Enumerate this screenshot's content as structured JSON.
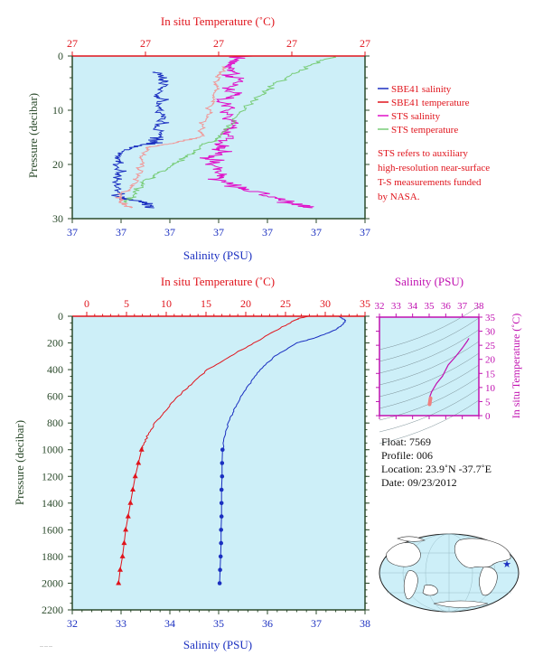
{
  "colors": {
    "plot_bg": "#cdeff8",
    "salinity_blue": "#1a2fc0",
    "temperature_red": "#e0141c",
    "sts_salinity": "#e010c8",
    "sts_temperature": "#78cc78",
    "pale_temperature": "#f09a9a",
    "axis_green": "#2b4a2b",
    "magenta": "#c010b0",
    "text_black": "#111111"
  },
  "top_panel": {
    "title_temp": "In situ Temperature (˚C)",
    "xlabel_sal": "Salinity (PSU)",
    "ylabel": "Pressure (decibar)",
    "temp_tick_labels": [
      "27",
      "27",
      "27",
      "27",
      "27"
    ],
    "sal_tick_labels": [
      "37",
      "37",
      "37",
      "37",
      "37",
      "37",
      "37"
    ],
    "pressure_tick_labels": [
      "0",
      "10",
      "20",
      "30"
    ],
    "legend": [
      {
        "label": "SBE41 salinity",
        "color": "#1a2fc0"
      },
      {
        "label": "SBE41 temperature",
        "color": "#e0141c"
      },
      {
        "label": "STS salinity",
        "color": "#e010c8"
      },
      {
        "label": "STS temperature",
        "color": "#78cc78"
      }
    ],
    "note_lines": [
      "STS refers to auxiliary",
      "high-resolution near-surface",
      "T-S measurements funded",
      "by NASA."
    ]
  },
  "main_panel": {
    "title_temp": "In situ Temperature (˚C)",
    "xlabel_sal": "Salinity (PSU)",
    "ylabel": "Pressure (decibar)",
    "temp_tick_labels": [
      "0",
      "5",
      "10",
      "15",
      "20",
      "25",
      "30",
      "35"
    ],
    "sal_tick_labels": [
      "32",
      "33",
      "34",
      "35",
      "36",
      "37",
      "38"
    ],
    "pressure_tick_labels": [
      "0",
      "200",
      "400",
      "600",
      "800",
      "1000",
      "1200",
      "1400",
      "1600",
      "1800",
      "2000",
      "2200"
    ]
  },
  "ts_panel": {
    "title_sal": "Salinity (PSU)",
    "ylabel": "In situ Temperature (˚C)",
    "sal_tick_labels": [
      "32",
      "33",
      "34",
      "35",
      "36",
      "37",
      "38"
    ],
    "temp_tick_labels": [
      "0",
      "5",
      "10",
      "15",
      "20",
      "25",
      "30",
      "35"
    ]
  },
  "float_info": {
    "float": "Float: 7569",
    "profile": "Profile: 006",
    "location": "Location: 23.9˚N -37.7˚E",
    "date": "Date: 09/23/2012"
  },
  "map": {
    "marker_icon": "star-icon"
  },
  "chart_data": [
    {
      "type": "line",
      "title": "In situ Temperature (˚C)",
      "xlabel": "Salinity (PSU)",
      "ylabel": "Pressure (decibar)",
      "ylim": [
        30,
        0
      ],
      "series": [
        {
          "name": "SBE41 salinity",
          "axis": "salinity",
          "pressure": [
            3,
            5,
            8,
            12,
            15,
            16,
            17,
            20,
            23,
            26,
            27,
            28
          ],
          "values": [
            0.29,
            0.31,
            0.3,
            0.3,
            0.29,
            0.28,
            0.18,
            0.17,
            0.15,
            0.15,
            0.25,
            0.28
          ]
        },
        {
          "name": "SBE41 temperature",
          "axis": "temperature",
          "pressure": [
            2,
            4,
            8,
            12,
            15,
            16,
            17,
            20,
            23,
            26,
            27,
            28
          ],
          "values": [
            0.52,
            0.5,
            0.48,
            0.45,
            0.44,
            0.35,
            0.25,
            0.24,
            0.22,
            0.16,
            0.17,
            0.2
          ]
        },
        {
          "name": "STS salinity",
          "axis": "salinity",
          "pressure": [
            0,
            2,
            5,
            8,
            12,
            16,
            18,
            20,
            23,
            25,
            27,
            28
          ],
          "values": [
            0.57,
            0.55,
            0.56,
            0.52,
            0.54,
            0.53,
            0.5,
            0.48,
            0.5,
            0.62,
            0.75,
            0.82
          ]
        },
        {
          "name": "STS temperature",
          "axis": "temperature",
          "pressure": [
            0,
            2,
            5,
            8,
            12,
            15,
            18,
            20,
            23,
            26,
            27
          ],
          "values": [
            0.9,
            0.8,
            0.7,
            0.62,
            0.55,
            0.5,
            0.4,
            0.35,
            0.25,
            0.2,
            0.18
          ]
        }
      ]
    },
    {
      "type": "line",
      "title": "In situ Temperature (˚C)",
      "xlabel": "Salinity (PSU)",
      "ylabel": "Pressure (decibar)",
      "xlim_temperature": [
        0,
        35
      ],
      "xlim_salinity": [
        32,
        38
      ],
      "ylim": [
        2200,
        0
      ],
      "series": [
        {
          "name": "Temperature",
          "axis": "temperature",
          "color": "#e0141c",
          "pressure": [
            0,
            20,
            100,
            200,
            300,
            400,
            500,
            600,
            700,
            800,
            900,
            1000
          ],
          "values": [
            27.8,
            26.5,
            24.0,
            21.0,
            18.0,
            15.2,
            13.3,
            11.5,
            10.0,
            8.6,
            7.6,
            6.9
          ]
        },
        {
          "name": "Salinity",
          "axis": "salinity",
          "color": "#1a2fc0",
          "pressure": [
            0,
            30,
            60,
            100,
            160,
            200,
            300,
            400,
            500,
            600,
            700,
            800,
            900,
            1000
          ],
          "values": [
            37.45,
            37.6,
            37.55,
            37.4,
            37.0,
            36.6,
            36.15,
            35.85,
            35.65,
            35.45,
            35.32,
            35.2,
            35.13,
            35.08
          ]
        },
        {
          "name": "Temperature (bottle)",
          "axis": "temperature",
          "color": "#e0141c",
          "marker": "triangle",
          "pressure": [
            1000,
            1100,
            1200,
            1300,
            1400,
            1500,
            1600,
            1700,
            1800,
            1900,
            2000
          ],
          "values": [
            6.9,
            6.5,
            6.1,
            5.8,
            5.5,
            5.2,
            4.9,
            4.7,
            4.5,
            4.2,
            4.0
          ]
        },
        {
          "name": "Salinity (bottle)",
          "axis": "salinity",
          "color": "#1a2fc0",
          "marker": "circle",
          "pressure": [
            1000,
            1100,
            1200,
            1300,
            1400,
            1500,
            1600,
            1700,
            1800,
            1900,
            2000
          ],
          "values": [
            35.08,
            35.07,
            35.07,
            35.06,
            35.06,
            35.06,
            35.05,
            35.05,
            35.04,
            35.03,
            35.02
          ]
        }
      ]
    },
    {
      "type": "scatter",
      "title": "Salinity (PSU)",
      "ylabel": "In situ Temperature (˚C)",
      "xlim": [
        32,
        38
      ],
      "ylim": [
        0,
        35
      ],
      "series": [
        {
          "name": "T-S curve",
          "color": "#c010b0",
          "x": [
            35.0,
            35.05,
            35.15,
            35.45,
            35.8,
            36.15,
            36.6,
            37.0,
            37.3,
            37.4
          ],
          "y": [
            5.5,
            6.9,
            8.5,
            11.5,
            14.0,
            18.0,
            21.0,
            24.0,
            26.5,
            27.5
          ]
        },
        {
          "name": "Deep points",
          "color": "#f08080",
          "x": [
            35.02,
            35.03,
            35.04,
            35.05,
            35.06,
            35.07,
            35.08
          ],
          "y": [
            4.0,
            4.3,
            4.6,
            5.0,
            5.4,
            5.8,
            6.2
          ]
        }
      ]
    }
  ]
}
